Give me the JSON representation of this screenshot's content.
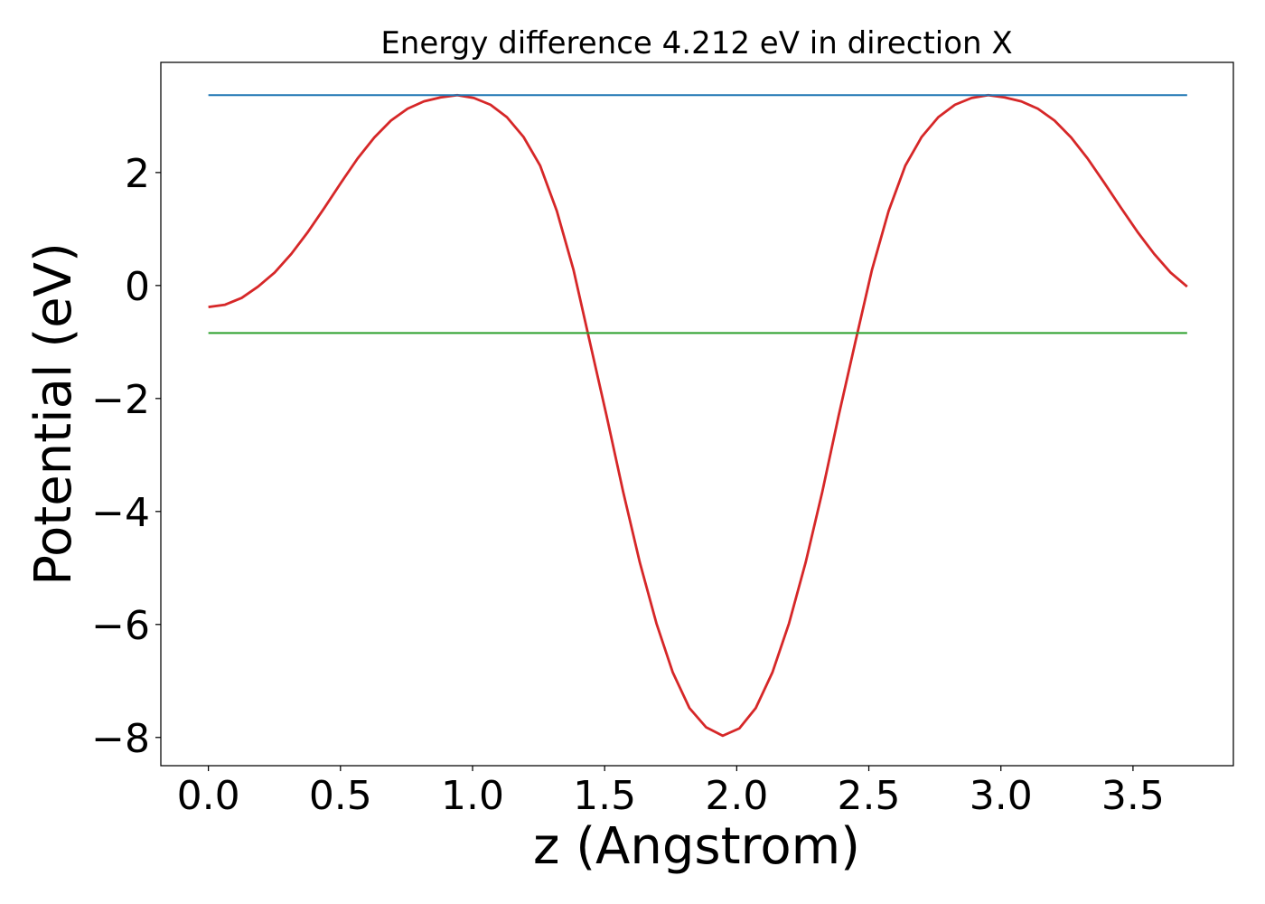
{
  "chart_data": {
    "type": "line",
    "title": "Energy difference 4.212 eV in direction X",
    "xlabel": "z (Angstrom)",
    "ylabel": "Potential (eV)",
    "xlim": [
      -0.18,
      3.88
    ],
    "ylim": [
      -8.5,
      3.95
    ],
    "grid": false,
    "xticks": [
      0.0,
      0.5,
      1.0,
      1.5,
      2.0,
      2.5,
      3.0,
      3.5
    ],
    "xtick_labels": [
      "0.0",
      "0.5",
      "1.0",
      "1.5",
      "2.0",
      "2.5",
      "3.0",
      "3.5"
    ],
    "yticks": [
      2,
      0,
      -2,
      -4,
      -6,
      -8
    ],
    "ytick_labels": [
      "2",
      "0",
      "−2",
      "−4",
      "−6",
      "−8"
    ],
    "series": [
      {
        "color": "#d62728",
        "x": [
          0.0,
          0.063,
          0.126,
          0.188,
          0.251,
          0.314,
          0.377,
          0.44,
          0.502,
          0.565,
          0.628,
          0.691,
          0.754,
          0.816,
          0.879,
          0.942,
          1.005,
          1.068,
          1.13,
          1.193,
          1.256,
          1.319,
          1.382,
          1.444,
          1.507,
          1.57,
          1.633,
          1.696,
          1.758,
          1.821,
          1.884,
          1.947,
          2.01,
          2.072,
          2.135,
          2.198,
          2.261,
          2.324,
          2.386,
          2.449,
          2.512,
          2.575,
          2.638,
          2.7,
          2.763,
          2.826,
          2.889,
          2.952,
          3.014,
          3.077,
          3.14,
          3.203,
          3.266,
          3.328,
          3.391,
          3.454,
          3.517,
          3.58,
          3.642,
          3.705
        ],
        "y": [
          -0.38,
          -0.34,
          -0.22,
          -0.02,
          0.23,
          0.56,
          0.95,
          1.38,
          1.82,
          2.25,
          2.62,
          2.92,
          3.13,
          3.26,
          3.33,
          3.37,
          3.32,
          3.2,
          2.98,
          2.63,
          2.12,
          1.32,
          0.28,
          -1.0,
          -2.3,
          -3.65,
          -4.9,
          -5.98,
          -6.85,
          -7.48,
          -7.82,
          -7.97,
          -7.84,
          -7.48,
          -6.85,
          -5.98,
          -4.9,
          -3.65,
          -2.3,
          -1.0,
          0.28,
          1.32,
          2.12,
          2.63,
          2.98,
          3.2,
          3.32,
          3.37,
          3.33,
          3.26,
          3.13,
          2.92,
          2.62,
          2.25,
          1.82,
          1.38,
          0.95,
          0.56,
          0.23,
          -0.02
        ]
      },
      {
        "color": "#1f77b4",
        "x": [
          0.0,
          3.705
        ],
        "y": [
          3.37,
          3.37
        ]
      },
      {
        "color": "#2ca02c",
        "x": [
          0.0,
          3.705
        ],
        "y": [
          -0.84,
          -0.84
        ]
      }
    ]
  }
}
